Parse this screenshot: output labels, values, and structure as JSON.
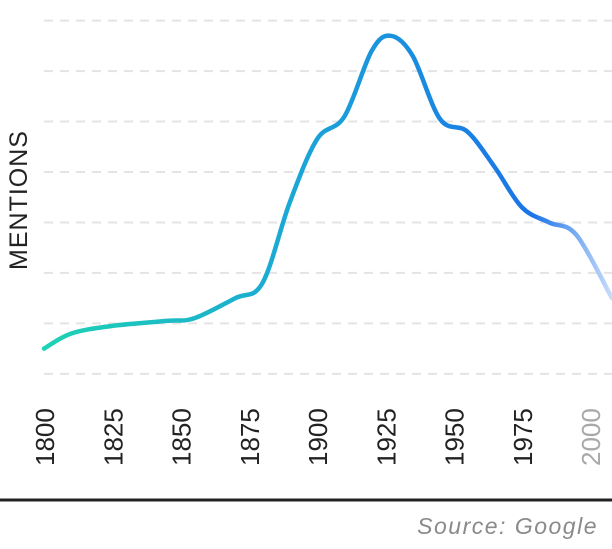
{
  "chart_data": {
    "type": "line",
    "title": "",
    "xlabel": "",
    "ylabel": "MENTIONS",
    "x": [
      1800,
      1810,
      1825,
      1845,
      1855,
      1870,
      1880,
      1890,
      1900,
      1910,
      1920,
      1927,
      1935,
      1945,
      1955,
      1965,
      1975,
      1985,
      1995,
      2008
    ],
    "series": [
      {
        "values": [
          2.0,
          2.6,
          2.9,
          3.1,
          3.2,
          4.0,
          4.6,
          7.8,
          10.3,
          11.2,
          13.8,
          14.4,
          13.6,
          11.1,
          10.6,
          9.2,
          7.6,
          7.0,
          6.5,
          4.0
        ]
      }
    ],
    "xlim": [
      1800,
      2008
    ],
    "ylim": [
      -4,
      15.5
    ],
    "xticks": [
      "1800",
      "1825",
      "1850",
      "1875",
      "1900",
      "1925",
      "1950",
      "1975",
      "2000"
    ],
    "grid": true,
    "legend": "none",
    "colors": {
      "line_start": "#1ed2b4",
      "line_mid": "#1aa6d6",
      "line_end": "#1a73e8",
      "fade_end": "#c9dcfb",
      "grid": "#e4e4e4",
      "axis": "#222222",
      "tick_text": "#222222",
      "tick_faded": "#a9a9a9"
    }
  },
  "source": "Source: Google"
}
